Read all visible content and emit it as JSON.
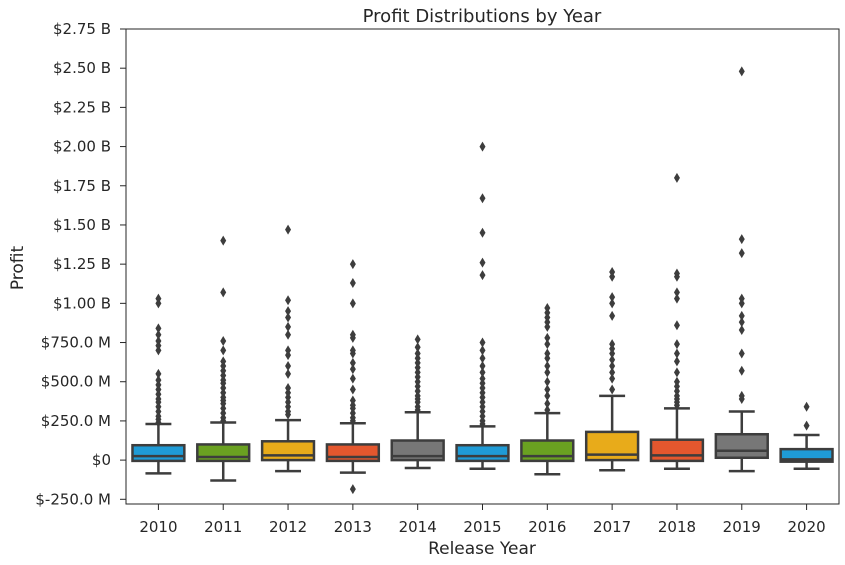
{
  "chart_data": {
    "type": "box",
    "title": "Profit Distributions by Year",
    "xlabel": "Release Year",
    "ylabel": "Profit",
    "ylim": [
      -280000000,
      2750000000
    ],
    "grid": false,
    "y_ticks": [
      {
        "value": 2750000000,
        "label": "$2.75 B"
      },
      {
        "value": 2500000000,
        "label": "$2.50 B"
      },
      {
        "value": 2250000000,
        "label": "$2.25 B"
      },
      {
        "value": 2000000000,
        "label": "$2.00 B"
      },
      {
        "value": 1750000000,
        "label": "$1.75 B"
      },
      {
        "value": 1500000000,
        "label": "$1.50 B"
      },
      {
        "value": 1250000000,
        "label": "$1.25 B"
      },
      {
        "value": 1000000000,
        "label": "$1.00 B"
      },
      {
        "value": 750000000,
        "label": "$750.0 M"
      },
      {
        "value": 500000000,
        "label": "$500.0 M"
      },
      {
        "value": 250000000,
        "label": "$250.0 M"
      },
      {
        "value": 0,
        "label": "$0"
      },
      {
        "value": -250000000,
        "label": "$-250.0 M"
      }
    ],
    "categories": [
      "2010",
      "2011",
      "2012",
      "2013",
      "2014",
      "2015",
      "2016",
      "2017",
      "2018",
      "2019",
      "2020"
    ],
    "colors": [
      "#1f9bd6",
      "#6aa121",
      "#e8ab1a",
      "#e4572e",
      "#777777",
      "#1f9bd6",
      "#6aa121",
      "#e8ab1a",
      "#e4572e",
      "#777777",
      "#1f9bd6"
    ],
    "boxes": [
      {
        "whislo": -85000000,
        "q1": -5000000,
        "med": 25000000,
        "q3": 95000000,
        "whishi": 230000000,
        "fliers": [
          240000000,
          260000000,
          280000000,
          310000000,
          340000000,
          370000000,
          390000000,
          420000000,
          450000000,
          480000000,
          510000000,
          550000000,
          700000000,
          730000000,
          760000000,
          800000000,
          840000000,
          1000000000,
          1030000000
        ]
      },
      {
        "whislo": -130000000,
        "q1": -5000000,
        "med": 20000000,
        "q3": 100000000,
        "whishi": 240000000,
        "fliers": [
          250000000,
          270000000,
          300000000,
          330000000,
          360000000,
          380000000,
          400000000,
          430000000,
          460000000,
          490000000,
          510000000,
          540000000,
          570000000,
          600000000,
          630000000,
          700000000,
          760000000,
          1070000000,
          1400000000
        ]
      },
      {
        "whislo": -70000000,
        "q1": 0,
        "med": 30000000,
        "q3": 120000000,
        "whishi": 255000000,
        "fliers": [
          290000000,
          310000000,
          340000000,
          370000000,
          400000000,
          430000000,
          460000000,
          550000000,
          600000000,
          670000000,
          700000000,
          800000000,
          850000000,
          910000000,
          950000000,
          1020000000,
          1470000000
        ]
      },
      {
        "whislo": -80000000,
        "q1": -5000000,
        "med": 20000000,
        "q3": 100000000,
        "whishi": 235000000,
        "fliers": [
          250000000,
          270000000,
          300000000,
          330000000,
          350000000,
          380000000,
          450000000,
          520000000,
          580000000,
          620000000,
          680000000,
          700000000,
          780000000,
          800000000,
          1000000000,
          1130000000,
          1250000000,
          -185000000
        ]
      },
      {
        "whislo": -50000000,
        "q1": 0,
        "med": 25000000,
        "q3": 125000000,
        "whishi": 305000000,
        "fliers": [
          320000000,
          340000000,
          370000000,
          390000000,
          410000000,
          440000000,
          470000000,
          500000000,
          530000000,
          560000000,
          590000000,
          620000000,
          650000000,
          680000000,
          720000000,
          770000000
        ]
      },
      {
        "whislo": -55000000,
        "q1": -5000000,
        "med": 25000000,
        "q3": 95000000,
        "whishi": 215000000,
        "fliers": [
          230000000,
          250000000,
          280000000,
          310000000,
          340000000,
          370000000,
          400000000,
          430000000,
          460000000,
          490000000,
          520000000,
          560000000,
          600000000,
          650000000,
          700000000,
          750000000,
          1180000000,
          1260000000,
          1450000000,
          1670000000,
          2000000000
        ]
      },
      {
        "whislo": -90000000,
        "q1": -5000000,
        "med": 25000000,
        "q3": 125000000,
        "whishi": 300000000,
        "fliers": [
          320000000,
          360000000,
          410000000,
          450000000,
          500000000,
          560000000,
          600000000,
          650000000,
          680000000,
          740000000,
          780000000,
          850000000,
          880000000,
          910000000,
          940000000,
          970000000
        ]
      },
      {
        "whislo": -65000000,
        "q1": 0,
        "med": 35000000,
        "q3": 180000000,
        "whishi": 410000000,
        "fliers": [
          450000000,
          520000000,
          560000000,
          600000000,
          640000000,
          680000000,
          710000000,
          740000000,
          920000000,
          1000000000,
          1040000000,
          1170000000,
          1200000000
        ]
      },
      {
        "whislo": -55000000,
        "q1": -5000000,
        "med": 30000000,
        "q3": 130000000,
        "whishi": 330000000,
        "fliers": [
          350000000,
          370000000,
          390000000,
          410000000,
          440000000,
          470000000,
          500000000,
          560000000,
          630000000,
          680000000,
          740000000,
          860000000,
          1030000000,
          1070000000,
          1170000000,
          1190000000,
          1800000000
        ]
      },
      {
        "whislo": -70000000,
        "q1": 15000000,
        "med": 60000000,
        "q3": 165000000,
        "whishi": 310000000,
        "fliers": [
          390000000,
          410000000,
          570000000,
          680000000,
          830000000,
          880000000,
          920000000,
          1000000000,
          1030000000,
          1320000000,
          1410000000,
          2480000000
        ]
      },
      {
        "whislo": -55000000,
        "q1": -10000000,
        "med": 5000000,
        "q3": 70000000,
        "whishi": 160000000,
        "fliers": [
          220000000,
          340000000
        ]
      }
    ]
  }
}
